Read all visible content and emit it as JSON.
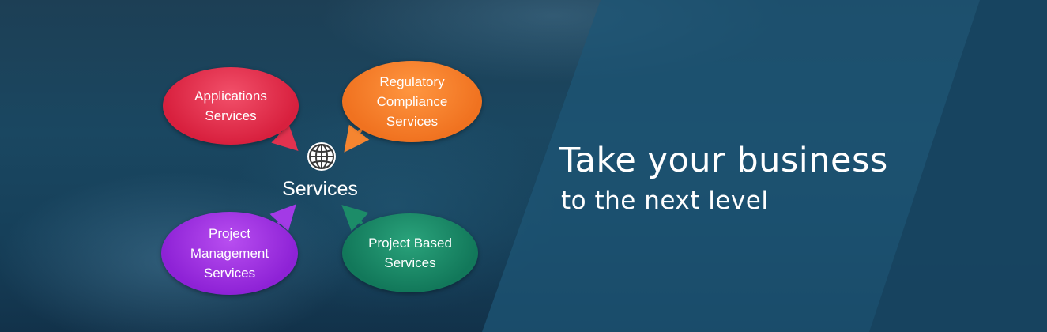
{
  "diagram": {
    "center_label": "Services",
    "bubbles": {
      "applications": "Applications\nServices",
      "regulatory": "Regulatory\nCompliance\nServices",
      "project_management": "Project\nManagement\nServices",
      "project_based": "Project Based\nServices"
    },
    "icon": "globe-icon"
  },
  "headline": {
    "line1": "Take your business",
    "line2": "to the next level"
  },
  "colors": {
    "applications": "#e2324f",
    "regulatory": "#f58530",
    "project_management": "#a33ae6",
    "project_based": "#1c8c68",
    "background": "#1a4761"
  }
}
